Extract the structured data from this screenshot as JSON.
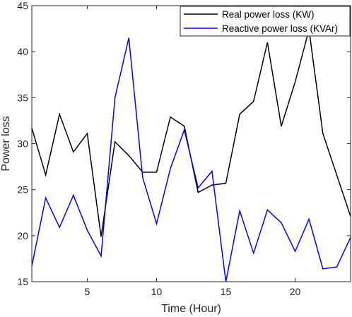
{
  "chart_data": {
    "type": "line",
    "xlabel": "Time (Hour)",
    "ylabel": "Power loss",
    "xlim": [
      1,
      24
    ],
    "ylim": [
      15,
      45
    ],
    "xticks": [
      5,
      10,
      15,
      20
    ],
    "yticks": [
      15,
      20,
      25,
      30,
      35,
      40,
      45
    ],
    "grid": false,
    "legend_position": "top-right",
    "x": [
      1,
      2,
      3,
      4,
      5,
      6,
      7,
      8,
      9,
      10,
      11,
      12,
      13,
      14,
      15,
      16,
      17,
      18,
      19,
      20,
      21,
      22,
      23,
      24
    ],
    "series": [
      {
        "name": "Real power loss (KW)",
        "color": "#000000",
        "values": [
          31.7,
          26.6,
          33.2,
          29.1,
          31.1,
          19.9,
          30.2,
          28.7,
          26.9,
          26.9,
          32.9,
          31.9,
          24.7,
          25.5,
          25.7,
          33.2,
          34.6,
          41.0,
          31.9,
          36.7,
          42.4,
          31.1,
          26.6,
          22.1
        ]
      },
      {
        "name": "Reactive power loss (KVAr)",
        "color": "#0000ff",
        "values": [
          16.7,
          24.1,
          20.9,
          24.4,
          20.6,
          17.8,
          35.0,
          41.5,
          26.3,
          21.3,
          27.3,
          31.5,
          25.2,
          27.0,
          15.0,
          22.7,
          18.1,
          22.8,
          21.4,
          18.3,
          21.8,
          16.4,
          16.6,
          19.8
        ]
      }
    ]
  }
}
